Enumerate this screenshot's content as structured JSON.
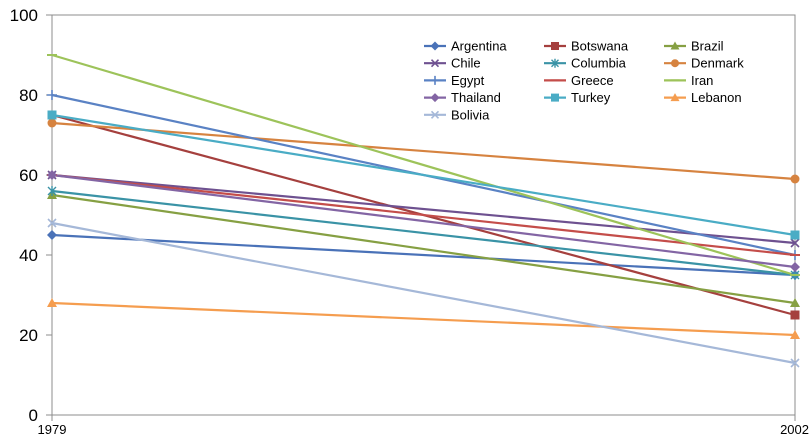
{
  "chart_data": {
    "type": "line",
    "x": [
      "1979",
      "2002"
    ],
    "ylim": [
      0,
      100
    ],
    "yticks": [
      "0",
      "20",
      "40",
      "60",
      "80",
      "100"
    ],
    "grid": false,
    "legend_position": "top-right",
    "series": [
      {
        "name": "Argentina",
        "values": [
          45,
          35
        ],
        "color": "#4a72b8",
        "marker": "diamond"
      },
      {
        "name": "Botswana",
        "values": [
          75,
          25
        ],
        "color": "#a5403e",
        "marker": "square"
      },
      {
        "name": "Brazil",
        "values": [
          55,
          28
        ],
        "color": "#86a043",
        "marker": "triangle"
      },
      {
        "name": "Chile",
        "values": [
          60,
          43
        ],
        "color": "#6e5190",
        "marker": "x"
      },
      {
        "name": "Columbia",
        "values": [
          56,
          35
        ],
        "color": "#3a93a6",
        "marker": "star"
      },
      {
        "name": "Denmark",
        "values": [
          73,
          59
        ],
        "color": "#d68340",
        "marker": "circle"
      },
      {
        "name": "Egypt",
        "values": [
          80,
          40
        ],
        "color": "#5a82c4",
        "marker": "plus"
      },
      {
        "name": "Greece",
        "values": [
          60,
          40
        ],
        "color": "#c44d4a",
        "marker": "dash"
      },
      {
        "name": "Iran",
        "values": [
          90,
          35
        ],
        "color": "#9dc35a",
        "marker": "dash"
      },
      {
        "name": "Thailand",
        "values": [
          60,
          37
        ],
        "color": "#8365a4",
        "marker": "diamond"
      },
      {
        "name": "Turkey",
        "values": [
          75,
          45
        ],
        "color": "#4aacc5",
        "marker": "square"
      },
      {
        "name": "Lebanon",
        "values": [
          28,
          20
        ],
        "color": "#f59d4f",
        "marker": "triangle"
      },
      {
        "name": "Bolivia",
        "values": [
          48,
          13
        ],
        "color": "#a5b8d8",
        "marker": "x"
      }
    ]
  }
}
